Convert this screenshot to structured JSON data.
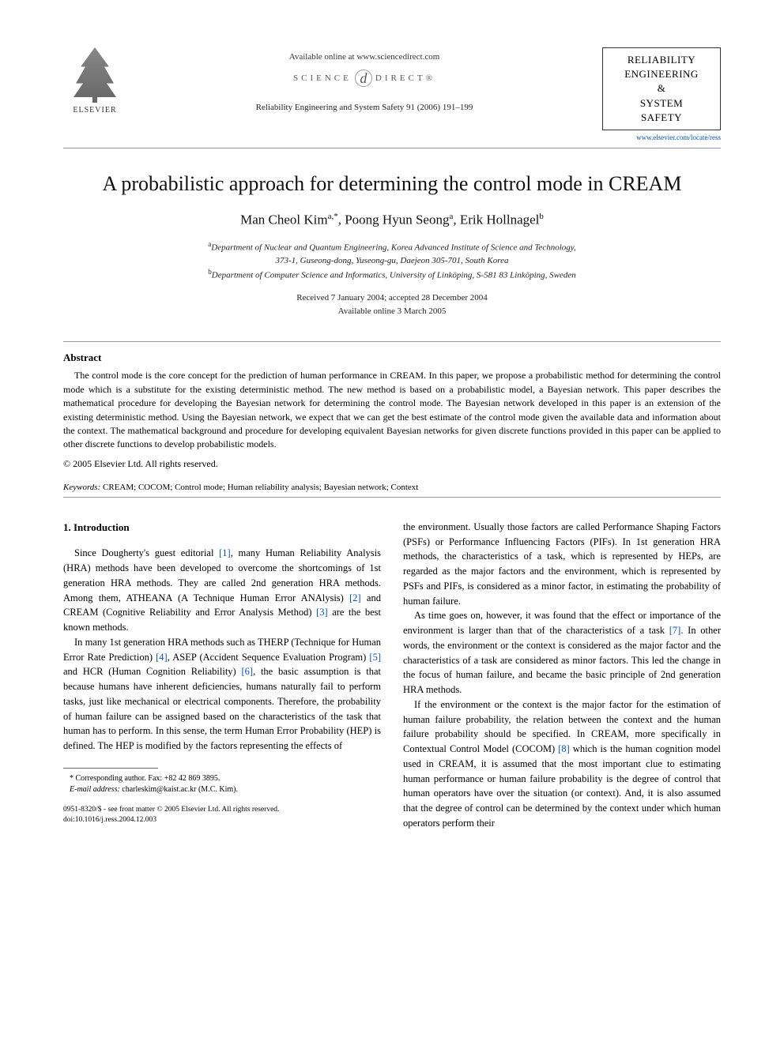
{
  "header": {
    "elsevier": "ELSEVIER",
    "available_online": "Available online at www.sciencedirect.com",
    "sciencedirect_left": "SCIENCE",
    "sciencedirect_right": "DIRECT®",
    "journal_ref": "Reliability Engineering and System Safety 91 (2006) 191–199",
    "journal_box_line1": "RELIABILITY",
    "journal_box_line2": "ENGINEERING",
    "journal_box_line3": "&",
    "journal_box_line4": "SYSTEM",
    "journal_box_line5": "SAFETY",
    "journal_link": "www.elsevier.com/locate/ress"
  },
  "title": "A probabilistic approach for determining the control mode in CREAM",
  "authors": {
    "a1_name": "Man Cheol Kim",
    "a1_sup": "a,*",
    "a2_name": "Poong Hyun Seong",
    "a2_sup": "a",
    "a3_name": "Erik Hollnagel",
    "a3_sup": "b"
  },
  "affiliations": {
    "a_sup": "a",
    "a_line1": "Department of Nuclear and Quantum Engineering, Korea Advanced Institute of Science and Technology,",
    "a_line2": "373-1, Guseong-dong, Yuseong-gu, Daejeon 305-701, South Korea",
    "b_sup": "b",
    "b_line": "Department of Computer Science and Informatics, University of Linköping, S-581 83 Linköping, Sweden"
  },
  "dates": {
    "received": "Received 7 January 2004; accepted 28 December 2004",
    "online": "Available online 3 March 2005"
  },
  "abstract": {
    "heading": "Abstract",
    "text": "The control mode is the core concept for the prediction of human performance in CREAM. In this paper, we propose a probabilistic method for determining the control mode which is a substitute for the existing deterministic method. The new method is based on a probabilistic model, a Bayesian network. This paper describes the mathematical procedure for developing the Bayesian network for determining the control mode. The Bayesian network developed in this paper is an extension of the existing deterministic method. Using the Bayesian network, we expect that we can get the best estimate of the control mode given the available data and information about the context. The mathematical background and procedure for developing equivalent Bayesian networks for given discrete functions provided in this paper can be applied to other discrete functions to develop probabilistic models.",
    "copyright": "© 2005 Elsevier Ltd. All rights reserved."
  },
  "keywords": {
    "label": "Keywords:",
    "text": " CREAM; COCOM; Control mode; Human reliability analysis; Bayesian network; Context"
  },
  "intro": {
    "heading": "1. Introduction",
    "p1a": "Since Dougherty's guest editorial ",
    "r1": "[1]",
    "p1b": ", many Human Reliability Analysis (HRA) methods have been developed to overcome the shortcomings of 1st generation HRA methods. They are called 2nd generation HRA methods. Among them, ATHEANA (A Technique Human Error ANAlysis) ",
    "r2": "[2]",
    "p1c": " and CREAM (Cognitive Reliability and Error Analysis Method) ",
    "r3": "[3]",
    "p1d": " are the best known methods.",
    "p2a": "In many 1st generation HRA methods such as THERP (Technique for Human Error Rate Prediction) ",
    "r4": "[4]",
    "p2b": ", ASEP (Accident Sequence Evaluation Program) ",
    "r5": "[5]",
    "p2c": " and HCR (Human Cognition Reliability) ",
    "r6": "[6]",
    "p2d": ", the basic assumption is that because humans have inherent deficiencies, humans naturally fail to perform tasks, just like mechanical or electrical components. Therefore, the probability of human failure can be assigned based on the characteristics of the task that human has to perform. In this sense, the term Human Error Probability (HEP) is defined. The HEP is modified by the factors representing the effects of",
    "p3": "the environment. Usually those factors are called Performance Shaping Factors (PSFs) or Performance Influencing Factors (PIFs). In 1st generation HRA methods, the characteristics of a task, which is represented by HEPs, are regarded as the major factors and the environment, which is represented by PSFs and PIFs, is considered as a minor factor, in estimating the probability of human failure.",
    "p4a": "As time goes on, however, it was found that the effect or importance of the environment is larger than that of the characteristics of a task ",
    "r7": "[7]",
    "p4b": ". In other words, the environment or the context is considered as the major factor and the characteristics of a task are considered as minor factors. This led the change in the focus of human failure, and became the basic principle of 2nd generation HRA methods.",
    "p5a": "If the environment or the context is the major factor for the estimation of human failure probability, the relation between the context and the human failure probability should be specified. In CREAM, more specifically in Contextual Control Model (COCOM) ",
    "r8": "[8]",
    "p5b": " which is the human cognition model used in CREAM, it is assumed that the most important clue to estimating human performance or human failure probability is the degree of control that human operators have over the situation (or context). And, it is also assumed that the degree of control can be determined by the context under which human operators perform their"
  },
  "footnote": {
    "corr": "* Corresponding author. Fax: +82 42 869 3895.",
    "email_label": "E-mail address:",
    "email": " charleskim@kaist.ac.kr (M.C. Kim)."
  },
  "doi": {
    "line1": "0951-8320/$ - see front matter © 2005 Elsevier Ltd. All rights reserved.",
    "line2": "doi:10.1016/j.ress.2004.12.003"
  }
}
